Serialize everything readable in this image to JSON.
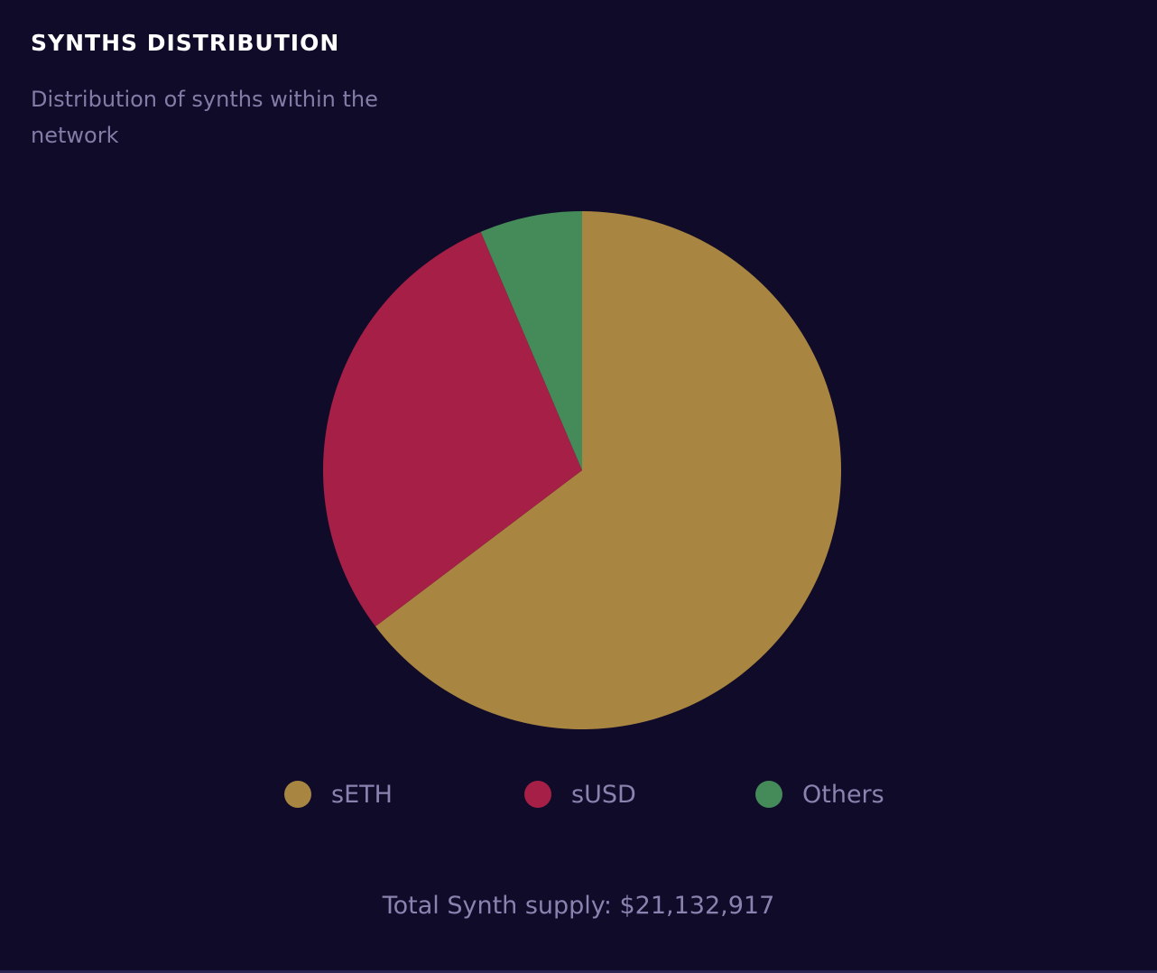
{
  "header": {
    "title": "SYNTHS DISTRIBUTION",
    "subtitle": "Distribution of synths within the network"
  },
  "footer": {
    "total_label": "Total Synth supply: $21,132,917"
  },
  "colors": {
    "sETH": "#a88540",
    "sUSD": "#a51f46",
    "Others": "#458a59",
    "background": "#100b29"
  },
  "chart_data": {
    "type": "pie",
    "title": "SYNTHS DISTRIBUTION",
    "legend_position": "bottom",
    "slices": [
      {
        "name": "sETH",
        "value": 64.7,
        "color": "#a88540"
      },
      {
        "name": "sUSD",
        "value": 28.9,
        "color": "#a51f46"
      },
      {
        "name": "Others",
        "value": 6.4,
        "color": "#458a59"
      }
    ]
  }
}
